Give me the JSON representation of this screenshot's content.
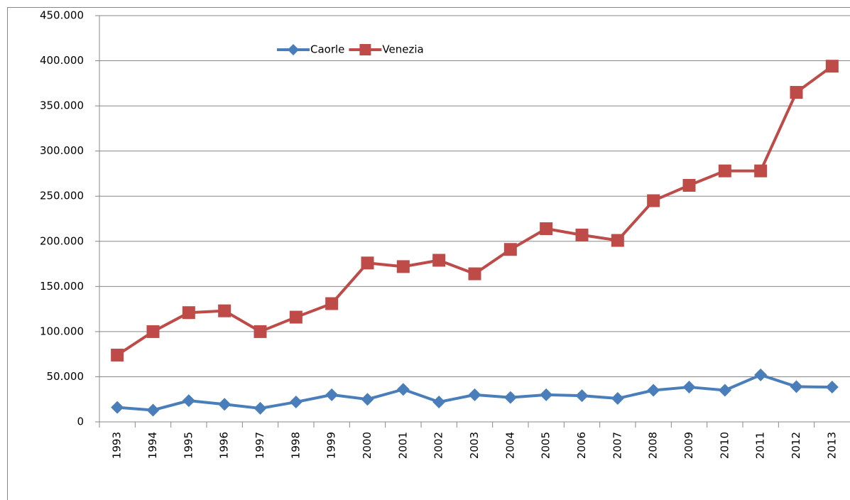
{
  "chart_data": {
    "type": "line",
    "categories": [
      "1993",
      "1994",
      "1995",
      "1996",
      "1997",
      "1998",
      "1999",
      "2000",
      "2001",
      "2002",
      "2003",
      "2004",
      "2005",
      "2006",
      "2007",
      "2008",
      "2009",
      "2010",
      "2011",
      "2012",
      "2013"
    ],
    "series": [
      {
        "name": "Caorle",
        "color": "#4a7ebb",
        "marker": "diamond",
        "values": [
          16000,
          13000,
          23500,
          19500,
          15000,
          22000,
          30000,
          25000,
          36000,
          22000,
          30000,
          27000,
          30000,
          29000,
          26000,
          35000,
          38500,
          35000,
          52000,
          39000,
          38500
        ]
      },
      {
        "name": "Venezia",
        "color": "#be4b48",
        "marker": "square",
        "values": [
          74000,
          100000,
          121000,
          123000,
          100000,
          116000,
          131000,
          176000,
          172000,
          179000,
          164000,
          191000,
          214000,
          207000,
          201000,
          245000,
          262000,
          278000,
          278000,
          365000,
          394000
        ]
      }
    ],
    "ylim": [
      0,
      450000
    ],
    "yticks": [
      0,
      {
        "value": 50000,
        "label": "50.000"
      },
      {
        "value": 100000,
        "label": "100.000"
      },
      {
        "value": 150000,
        "label": "150.000"
      },
      {
        "value": 200000,
        "label": "200.000"
      },
      {
        "value": 250000,
        "label": "250.000"
      },
      {
        "value": 300000,
        "label": "300.000"
      },
      {
        "value": 350000,
        "label": "350.000"
      },
      {
        "value": 400000,
        "label": "400.000"
      },
      {
        "value": 450000,
        "label": "450.000"
      }
    ],
    "grid": true
  }
}
